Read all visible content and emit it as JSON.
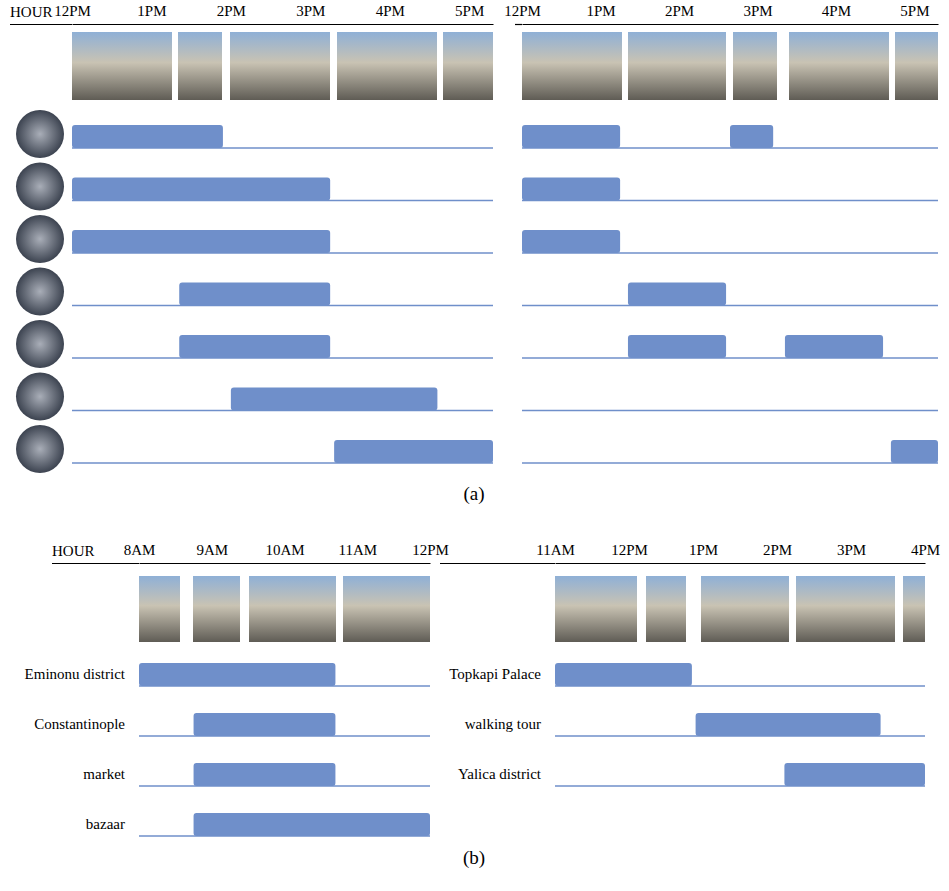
{
  "chart_data": [
    {
      "type": "timeline",
      "title": "(a)",
      "x_label": "HOUR",
      "color": "#6f8fca",
      "panels": [
        {
          "xlim": [
            12,
            17.3
          ],
          "xticks": [
            {
              "value": 12,
              "label": "12PM"
            },
            {
              "value": 13,
              "label": "1PM"
            },
            {
              "value": 14,
              "label": "2PM"
            },
            {
              "value": 15,
              "label": "3PM"
            },
            {
              "value": 16,
              "label": "4PM"
            },
            {
              "value": 17,
              "label": "5PM"
            }
          ],
          "categories": [
            null,
            null,
            null,
            null,
            null,
            null,
            null
          ],
          "intervals": [
            [
              [
                12,
                13.9
              ]
            ],
            [
              [
                12,
                15.25
              ]
            ],
            [
              [
                12,
                15.25
              ]
            ],
            [
              [
                13.35,
                15.25
              ]
            ],
            [
              [
                13.35,
                15.25
              ]
            ],
            [
              [
                14,
                16.6
              ]
            ],
            [
              [
                15.3,
                17.3
              ]
            ]
          ]
        },
        {
          "xlim": [
            12,
            17.3
          ],
          "xticks": [
            {
              "value": 12,
              "label": "12PM"
            },
            {
              "value": 13,
              "label": "1PM"
            },
            {
              "value": 14,
              "label": "2PM"
            },
            {
              "value": 15,
              "label": "3PM"
            },
            {
              "value": 16,
              "label": "4PM"
            },
            {
              "value": 17,
              "label": "5PM"
            }
          ],
          "categories": [
            null,
            null,
            null,
            null,
            null,
            null,
            null
          ],
          "intervals": [
            [
              [
                12,
                13.25
              ],
              [
                14.65,
                15.2
              ]
            ],
            [
              [
                12,
                13.25
              ]
            ],
            [
              [
                12,
                13.25
              ]
            ],
            [
              [
                13.35,
                14.6
              ]
            ],
            [
              [
                13.35,
                14.6
              ],
              [
                15.35,
                16.6
              ]
            ],
            [],
            [
              [
                16.7,
                17.3
              ]
            ]
          ]
        }
      ]
    },
    {
      "type": "timeline",
      "title": "(b)",
      "x_label": "HOUR",
      "color": "#6f8fca",
      "panels": [
        {
          "xlim": [
            8,
            12
          ],
          "xticks": [
            {
              "value": 8,
              "label": "8AM"
            },
            {
              "value": 9,
              "label": "9AM"
            },
            {
              "value": 10,
              "label": "10AM"
            },
            {
              "value": 11,
              "label": "11AM"
            },
            {
              "value": 12,
              "label": "12PM"
            }
          ],
          "categories": [
            "Eminonu district",
            "Constantinople",
            "market",
            "bazaar"
          ],
          "intervals": [
            [
              [
                8,
                10.7
              ]
            ],
            [
              [
                8.75,
                10.7
              ]
            ],
            [
              [
                8.75,
                10.7
              ]
            ],
            [
              [
                8.75,
                12
              ]
            ]
          ]
        },
        {
          "xlim": [
            11,
            16
          ],
          "xticks": [
            {
              "value": 11,
              "label": "11AM"
            },
            {
              "value": 12,
              "label": "12PM"
            },
            {
              "value": 13,
              "label": "1PM"
            },
            {
              "value": 14,
              "label": "2PM"
            },
            {
              "value": 15,
              "label": "3PM"
            },
            {
              "value": 16,
              "label": "4PM"
            }
          ],
          "categories": [
            "Topkapi Palace",
            "walking tour",
            "Yalica district"
          ],
          "intervals": [
            [
              [
                11,
                12.85
              ]
            ],
            [
              [
                12.9,
                15.4
              ]
            ],
            [
              [
                14.1,
                16
              ]
            ]
          ]
        }
      ]
    }
  ]
}
